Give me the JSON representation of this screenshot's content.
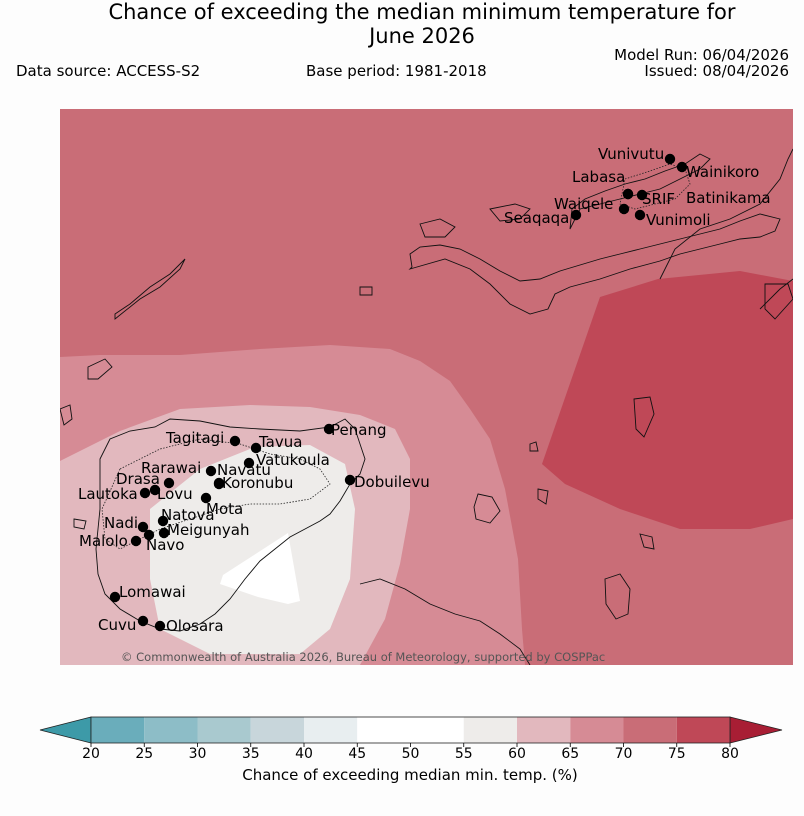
{
  "title_line1": "Chance of exceeding the median minimum temperature for",
  "title_line2": "June 2026",
  "data_source": "Data source: ACCESS-S2",
  "base_period": "Base period: 1981-2018",
  "model_run": "Model Run: 06/04/2026",
  "issued": "Issued: 08/04/2026",
  "copyright": "© Commonwealth of Australia 2026, Bureau of Meteorology, supported by COSPPac",
  "colorbar": {
    "label": "Chance of exceeding median min. temp. (%)",
    "ticks": [
      "20",
      "25",
      "30",
      "35",
      "40",
      "45",
      "50",
      "55",
      "60",
      "65",
      "70",
      "75",
      "80"
    ],
    "colors": [
      "#6aadbb",
      "#8dbdc7",
      "#a9c9cf",
      "#c8d6db",
      "#e8eef0",
      "#ffffff",
      "#ffffff",
      "#eeecea",
      "#e2b8be",
      "#d68b95",
      "#c96d77",
      "#bf4857"
    ],
    "extend_low": "#3d9aa8",
    "extend_high": "#a81e34"
  },
  "stations": [
    {
      "name": "Vunivutu"
    },
    {
      "name": "Wainikoro"
    },
    {
      "name": "Labasa"
    },
    {
      "name": "SRIF"
    },
    {
      "name": "Batinikama"
    },
    {
      "name": "Waiqele"
    },
    {
      "name": "Seaqaqa"
    },
    {
      "name": "Vunimoli"
    },
    {
      "name": "Penang"
    },
    {
      "name": "Tagitagi"
    },
    {
      "name": "Tavua"
    },
    {
      "name": "Vatukoula"
    },
    {
      "name": "Rarawai"
    },
    {
      "name": "Navatu"
    },
    {
      "name": "Drasa"
    },
    {
      "name": "Koronubu"
    },
    {
      "name": "Dobuilevu"
    },
    {
      "name": "Lautoka"
    },
    {
      "name": "Lovu"
    },
    {
      "name": "Mota"
    },
    {
      "name": "Natova"
    },
    {
      "name": "Nadi"
    },
    {
      "name": "Meigunyah"
    },
    {
      "name": "Malolo"
    },
    {
      "name": "Navo"
    },
    {
      "name": "Lomawai"
    },
    {
      "name": "Cuvu"
    },
    {
      "name": "Olosara"
    }
  ]
}
